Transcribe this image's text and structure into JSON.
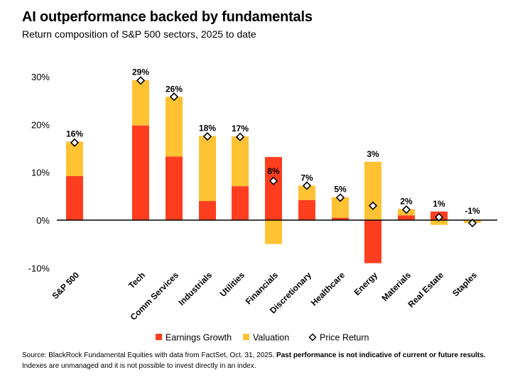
{
  "title": "AI outperformance backed by fundamentals",
  "subtitle": "Return composition of S&P 500 sectors, 2025 to date",
  "source": {
    "prefix": "Source: BlackRock Fundamental Equities with data from FactSet, Oct. 31, 2025. ",
    "bold": "Past performance is not indicative of current or future results.",
    "suffix": " Indexes are unmanaged and it is not possible to invest directly in an index."
  },
  "colors": {
    "earnings": "#ff3d1f",
    "valuation": "#ffc233",
    "marker_fill": "#ffffff",
    "marker_stroke": "#000000",
    "text": "#000000"
  },
  "chart_data": {
    "type": "bar",
    "stacked": true,
    "categories": [
      "S&P 500",
      "Tech",
      "Comm Services",
      "Industrials",
      "Utilities",
      "Financials",
      "Discretionary",
      "Healthcare",
      "Energy",
      "Materials",
      "Real Estate",
      "Staples"
    ],
    "series": [
      {
        "name": "Earnings Growth",
        "type": "bar",
        "values": [
          9.2,
          19.8,
          13.3,
          4.0,
          7.1,
          13.2,
          4.2,
          0.5,
          -9.0,
          1.0,
          1.8,
          0
        ]
      },
      {
        "name": "Valuation",
        "type": "bar",
        "values": [
          7.2,
          9.5,
          12.5,
          13.6,
          10.4,
          -5.0,
          3.0,
          4.3,
          12.2,
          1.3,
          -1.0,
          -0.6
        ]
      },
      {
        "name": "Price Return",
        "type": "marker",
        "values": [
          16.2,
          29.2,
          25.8,
          17.5,
          17.4,
          8.2,
          7.2,
          4.7,
          3.0,
          2.2,
          0.6,
          -0.6
        ]
      }
    ],
    "data_labels": [
      "16%",
      "29%",
      "26%",
      "18%",
      "17%",
      "8%",
      "7%",
      "5%",
      "3%",
      "2%",
      "1%",
      "-1%"
    ],
    "y_ticks": [
      30,
      20,
      10,
      0,
      -10
    ],
    "y_tick_labels": [
      "30%",
      "20%",
      "10%",
      "0%",
      "-10%"
    ],
    "ylim": [
      -10,
      30
    ],
    "xlabel": "",
    "ylabel": "",
    "legend_position": "bottom"
  }
}
